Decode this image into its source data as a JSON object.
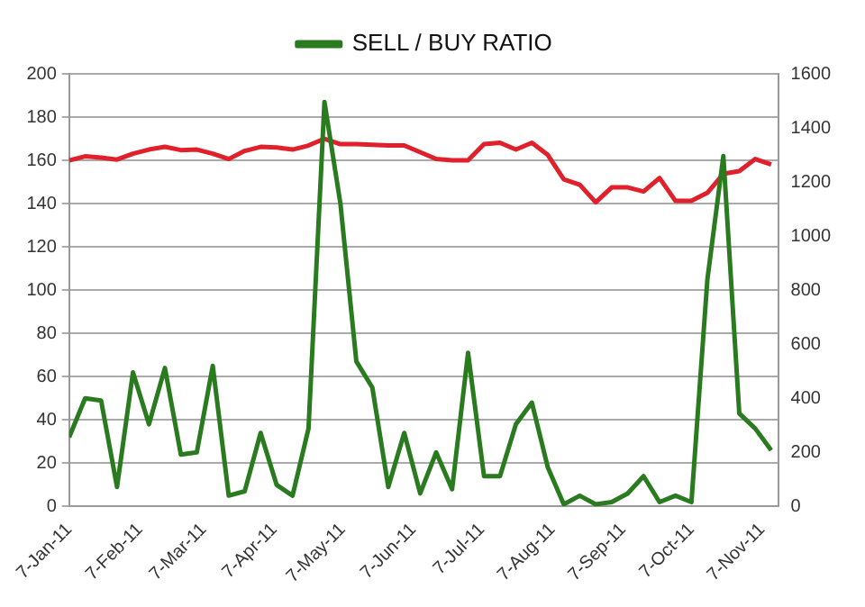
{
  "chart_data": {
    "type": "line",
    "x": [
      "2011-01-07",
      "2011-01-14",
      "2011-01-21",
      "2011-01-28",
      "2011-02-04",
      "2011-02-11",
      "2011-02-18",
      "2011-02-25",
      "2011-03-04",
      "2011-03-11",
      "2011-03-18",
      "2011-03-25",
      "2011-04-01",
      "2011-04-08",
      "2011-04-15",
      "2011-04-22",
      "2011-04-29",
      "2011-05-06",
      "2011-05-13",
      "2011-05-20",
      "2011-05-27",
      "2011-06-03",
      "2011-06-10",
      "2011-06-17",
      "2011-06-24",
      "2011-07-01",
      "2011-07-08",
      "2011-07-15",
      "2011-07-22",
      "2011-07-29",
      "2011-08-05",
      "2011-08-12",
      "2011-08-19",
      "2011-08-26",
      "2011-09-02",
      "2011-09-09",
      "2011-09-16",
      "2011-09-23",
      "2011-09-30",
      "2011-10-07",
      "2011-10-14",
      "2011-10-21",
      "2011-10-28",
      "2011-11-04",
      "2011-11-11"
    ],
    "series": [
      {
        "name": "SELL / BUY RATIO",
        "color": "#2a7a1f",
        "values": [
          32,
          50,
          49,
          9,
          62,
          38,
          64,
          24,
          25,
          65,
          5,
          7,
          34,
          10,
          5,
          36,
          187,
          140,
          67,
          55,
          9,
          34,
          6,
          25,
          8,
          71,
          14,
          14,
          38,
          48,
          18,
          1,
          5,
          1,
          2,
          6,
          14,
          2,
          5,
          2,
          105,
          162,
          43,
          36,
          26
        ]
      },
      {
        "color": "#e0202a",
        "axis": "y2",
        "values": [
          1280,
          1295,
          1290,
          1283,
          1305,
          1320,
          1330,
          1318,
          1320,
          1305,
          1285,
          1315,
          1330,
          1328,
          1320,
          1335,
          1360,
          1340,
          1340,
          1338,
          1335,
          1335,
          1310,
          1285,
          1280,
          1280,
          1340,
          1345,
          1320,
          1345,
          1300,
          1210,
          1190,
          1125,
          1180,
          1180,
          1165,
          1215,
          1130,
          1130,
          1160,
          1230,
          1240,
          1285,
          1265
        ]
      }
    ],
    "xlim": [
      "2011-01-07",
      "2011-11-14"
    ],
    "xticks": [
      {
        "value": "2011-01-07",
        "label": "7-Jan-11"
      },
      {
        "value": "2011-02-07",
        "label": "7-Feb-11"
      },
      {
        "value": "2011-03-07",
        "label": "7-Mar-11"
      },
      {
        "value": "2011-04-07",
        "label": "7-Apr-11"
      },
      {
        "value": "2011-05-07",
        "label": "7-May-11"
      },
      {
        "value": "2011-06-07",
        "label": "7-Jun-11"
      },
      {
        "value": "2011-07-07",
        "label": "7-Jul-11"
      },
      {
        "value": "2011-08-07",
        "label": "7-Aug-11"
      },
      {
        "value": "2011-09-07",
        "label": "7-Sep-11"
      },
      {
        "value": "2011-10-07",
        "label": "7-Oct-11"
      },
      {
        "value": "2011-11-07",
        "label": "7-Nov-11"
      }
    ],
    "ylim": [
      0,
      200
    ],
    "yticks": [
      0,
      20,
      40,
      60,
      80,
      100,
      120,
      140,
      160,
      180,
      200
    ],
    "y2lim": [
      0,
      1600
    ],
    "y2ticks": [
      0,
      200,
      400,
      600,
      800,
      1000,
      1200,
      1400,
      1600
    ],
    "grid": "y",
    "legend": "top",
    "marker": "none",
    "line_style": "solid"
  }
}
